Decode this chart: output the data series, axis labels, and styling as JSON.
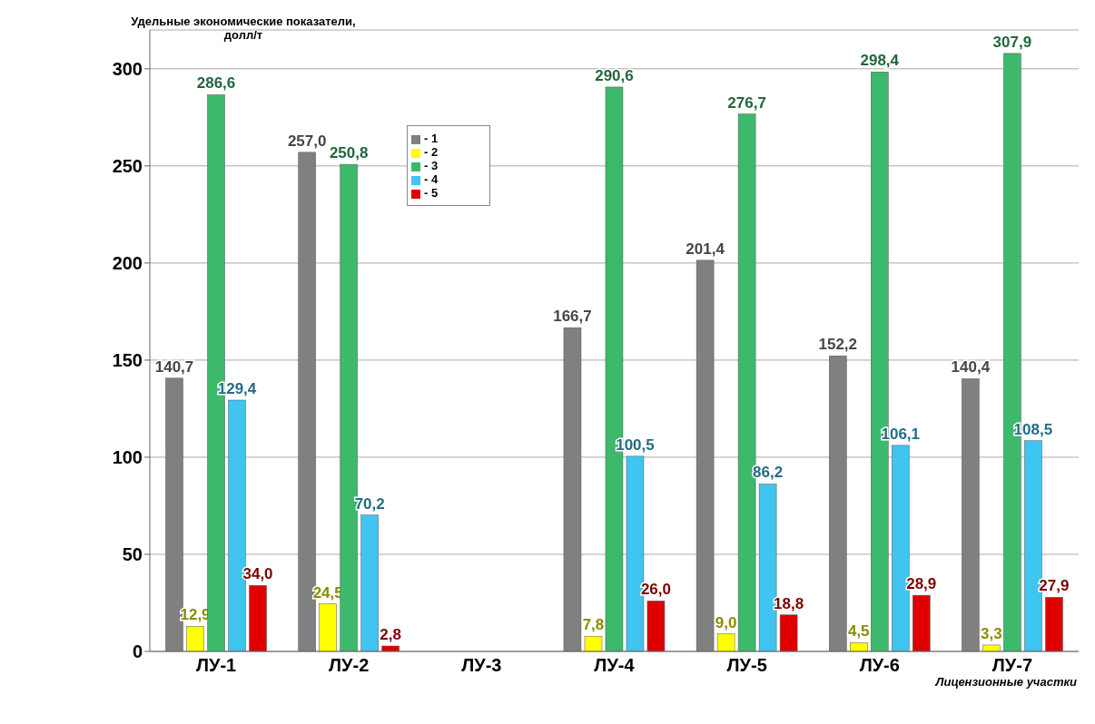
{
  "chart_data": {
    "type": "bar",
    "ylabel": "Удельные экономические показатели, долл/т",
    "xlabel": "Лицензионные участки",
    "categories": [
      "ЛУ-1",
      "ЛУ-2",
      "ЛУ-3",
      "ЛУ-4",
      "ЛУ-5",
      "ЛУ-6",
      "ЛУ-7"
    ],
    "series": [
      {
        "name": "- 1",
        "color": "#808080",
        "values": [
          140.7,
          257.0,
          null,
          166.7,
          201.4,
          152.2,
          140.4
        ],
        "value_labels": [
          "140,7",
          "257,0",
          null,
          "166,7",
          "201,4",
          "152,2",
          "140,4"
        ]
      },
      {
        "name": "- 2",
        "color": "#ffff00",
        "values": [
          12.9,
          24.5,
          null,
          7.8,
          9.0,
          4.5,
          3.3
        ],
        "value_labels": [
          "12,9",
          "24,5",
          null,
          "7,8",
          "9,0",
          "4,5",
          "3,3"
        ]
      },
      {
        "name": "- 3",
        "color": "#3cb96b",
        "values": [
          286.6,
          250.8,
          null,
          290.6,
          276.7,
          298.4,
          307.9
        ],
        "value_labels": [
          "286,6",
          "250,8",
          null,
          "290,6",
          "276,7",
          "298,4",
          "307,9"
        ]
      },
      {
        "name": "- 4",
        "color": "#40c4f0",
        "values": [
          129.4,
          70.2,
          null,
          100.5,
          86.2,
          106.1,
          108.5
        ],
        "value_labels": [
          "129,4",
          "70,2",
          null,
          "100,5",
          "86,2",
          "106,1",
          "108,5"
        ]
      },
      {
        "name": "- 5",
        "color": "#e00000",
        "values": [
          34.0,
          2.8,
          null,
          26.0,
          18.8,
          28.9,
          27.9
        ],
        "value_labels": [
          "34,0",
          "2,8",
          null,
          "26,0",
          "18,8",
          "28,9",
          "27,9"
        ]
      }
    ],
    "ylim": [
      0,
      320
    ],
    "yticks": [
      0,
      50,
      100,
      150,
      200,
      250,
      300
    ],
    "grid": "y",
    "legend": "top"
  }
}
